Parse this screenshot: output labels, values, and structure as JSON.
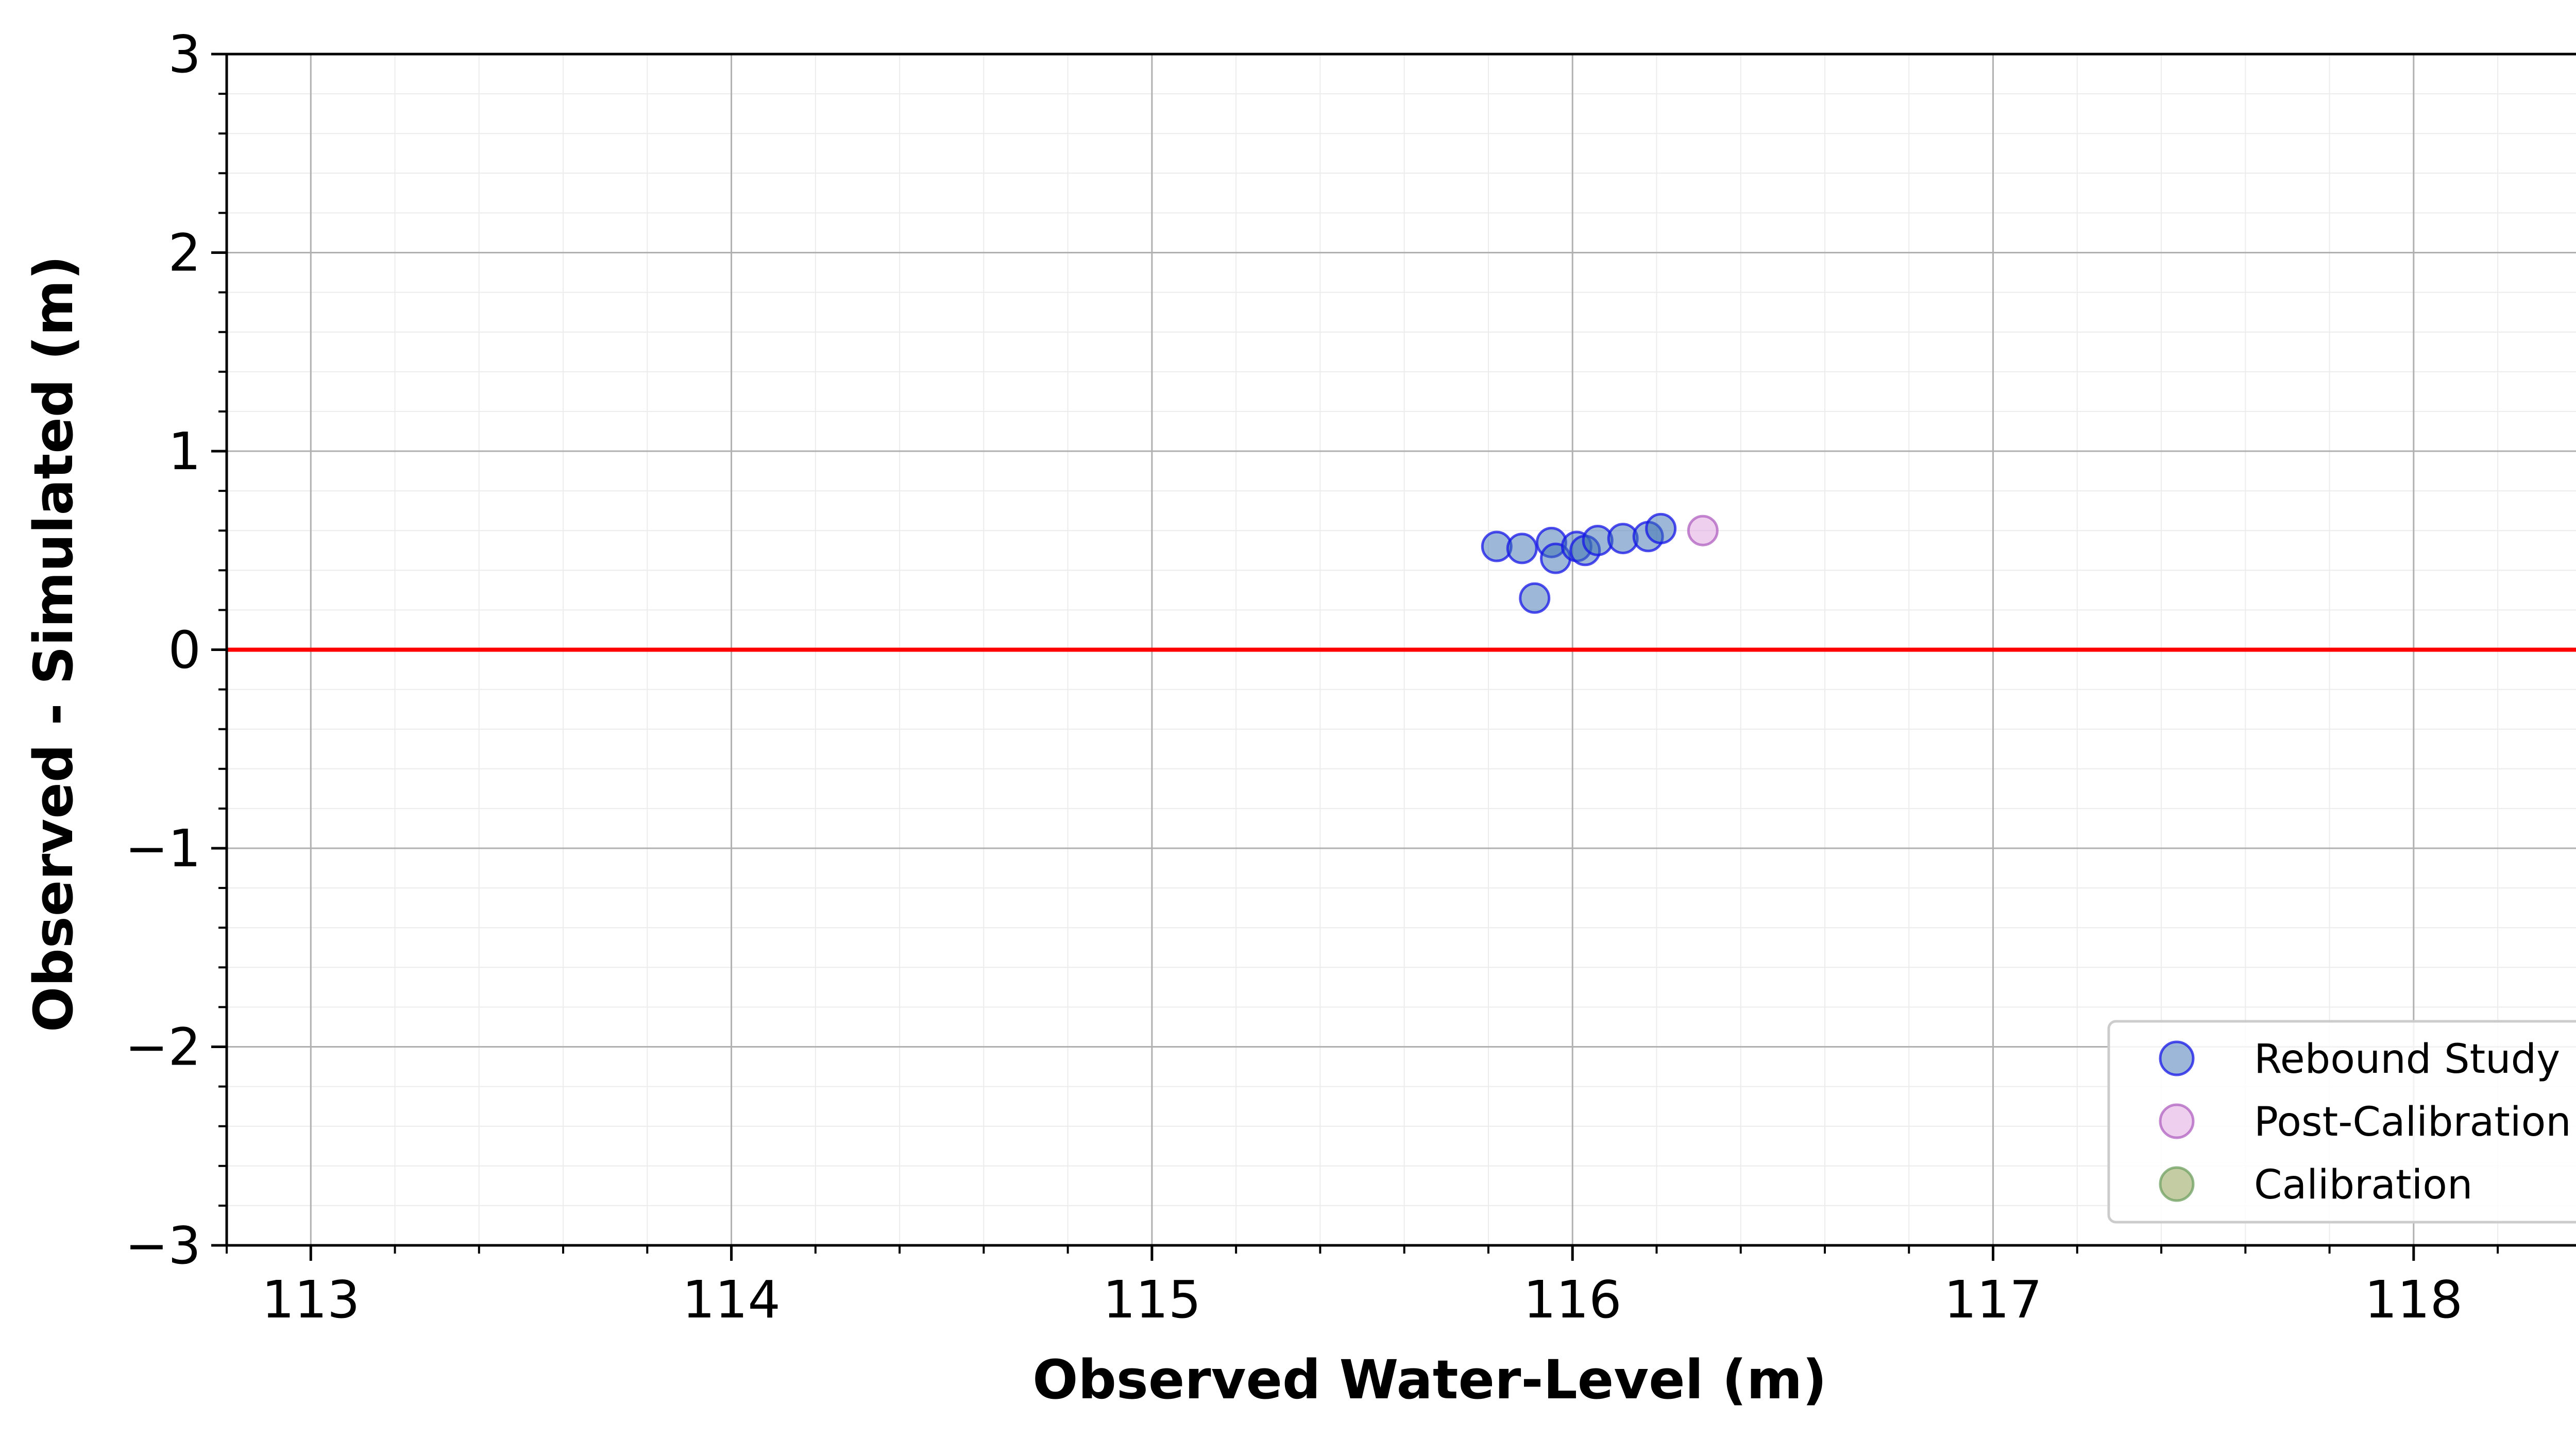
{
  "chart_data": {
    "type": "scatter",
    "title": "",
    "xlabel": "Observed Water-Level (m)",
    "ylabel": "Observed - Simulated (m)",
    "xlim": [
      112.8,
      118.5
    ],
    "ylim": [
      -3,
      3
    ],
    "x_ticks": [
      113,
      114,
      115,
      116,
      117,
      118
    ],
    "x_tick_labels": [
      "113",
      "114",
      "115",
      "116",
      "117",
      "118"
    ],
    "x_minor_step": 0.2,
    "y_ticks": [
      -3,
      -2,
      -1,
      0,
      1,
      2,
      3
    ],
    "y_tick_labels": [
      "−3",
      "−2",
      "−1",
      "0",
      "1",
      "2",
      "3"
    ],
    "y_minor_step": 0.2,
    "grid": {
      "major": true,
      "minor": true
    },
    "reference_line": {
      "y": 0,
      "color": "#ff0000"
    },
    "legend_position": "lower-right",
    "series": [
      {
        "name": "Rebound Study",
        "fill": "#3a6fb0",
        "edge": "#1515e8",
        "points": [
          {
            "x": 115.82,
            "y": 0.52
          },
          {
            "x": 115.88,
            "y": 0.51
          },
          {
            "x": 115.91,
            "y": 0.26
          },
          {
            "x": 115.95,
            "y": 0.54
          },
          {
            "x": 115.96,
            "y": 0.46
          },
          {
            "x": 116.01,
            "y": 0.52
          },
          {
            "x": 116.03,
            "y": 0.5
          },
          {
            "x": 116.06,
            "y": 0.55
          },
          {
            "x": 116.12,
            "y": 0.56
          },
          {
            "x": 116.18,
            "y": 0.57
          },
          {
            "x": 116.21,
            "y": 0.61
          }
        ]
      },
      {
        "name": "Post-Calibration",
        "fill": "#dda0dd",
        "edge": "#b060c0",
        "points": [
          {
            "x": 116.31,
            "y": 0.6
          }
        ]
      },
      {
        "name": "Calibration",
        "fill": "#8a9a4a",
        "edge": "#6fa060",
        "points": []
      }
    ]
  }
}
